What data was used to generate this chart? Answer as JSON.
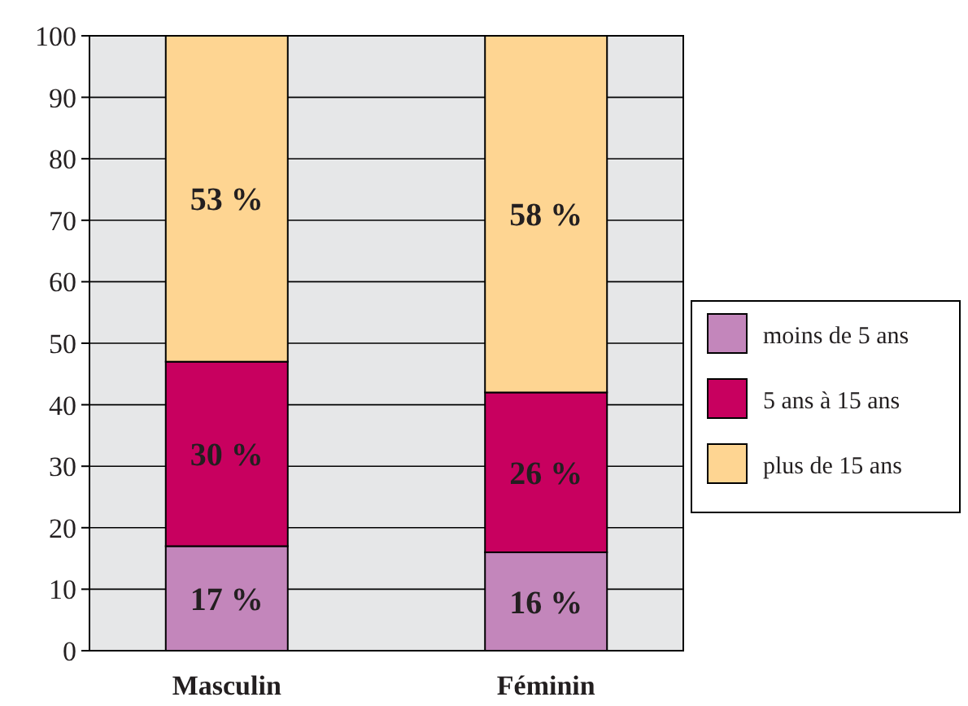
{
  "chart_data": {
    "type": "bar",
    "stacked": true,
    "categories": [
      "Masculin",
      "Féminin"
    ],
    "series": [
      {
        "name": "moins de 5 ans",
        "color": "#c386bb",
        "values": [
          17,
          16
        ],
        "value_labels": [
          "17 %",
          "16 %"
        ]
      },
      {
        "name": "5 ans à 15 ans",
        "color": "#c8005f",
        "values": [
          30,
          26
        ],
        "value_labels": [
          "30 %",
          "26 %"
        ]
      },
      {
        "name": "plus de 15 ans",
        "color": "#fed592",
        "values": [
          53,
          58
        ],
        "value_labels": [
          "53 %",
          "58 %"
        ]
      }
    ],
    "ylim": [
      0,
      100
    ],
    "yticks": [
      0,
      10,
      20,
      30,
      40,
      50,
      60,
      70,
      80,
      90,
      100
    ],
    "grid": "y",
    "legend": "right"
  }
}
